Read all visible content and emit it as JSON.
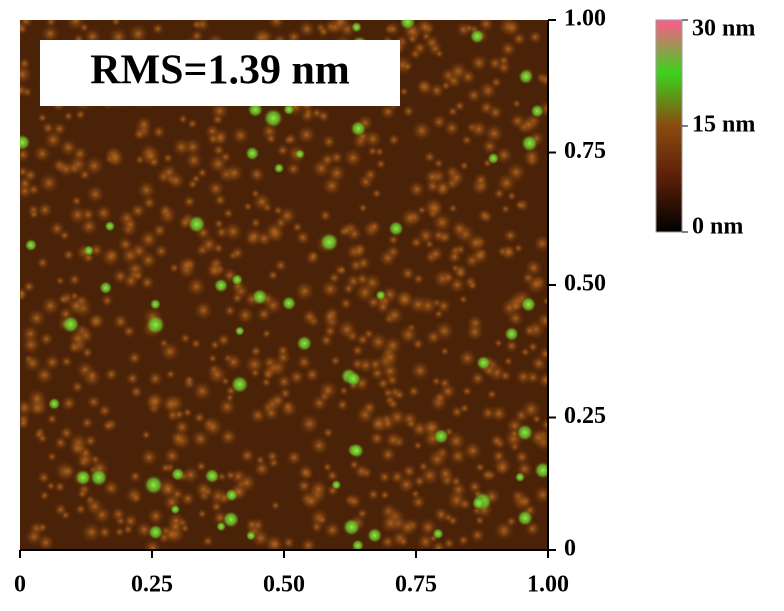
{
  "chart_data": {
    "type": "image",
    "annotation": "RMS=1.39 nm",
    "xlim": [
      0,
      1
    ],
    "xticks": [
      0,
      0.25,
      {
        "value": 0.5,
        "label": "0.50"
      },
      0.75,
      {
        "value": 1,
        "label": "1.00"
      }
    ],
    "ylim": [
      0,
      1
    ],
    "yticks": [
      0,
      0.25,
      {
        "value": 0.5,
        "label": "0.50"
      },
      0.75,
      {
        "value": 1,
        "label": "1.00"
      }
    ],
    "colorbar": {
      "lim": [
        0,
        30
      ],
      "colors": [
        "#000000",
        "#5a1e08",
        "#8a4a10",
        "#3cd21e",
        "#ff5a8c"
      ],
      "ticks": [
        {
          "value": 0,
          "label": "0 nm"
        },
        {
          "value": 15,
          "label": "15 nm"
        },
        {
          "value": 30,
          "label": "30 nm"
        }
      ]
    }
  }
}
